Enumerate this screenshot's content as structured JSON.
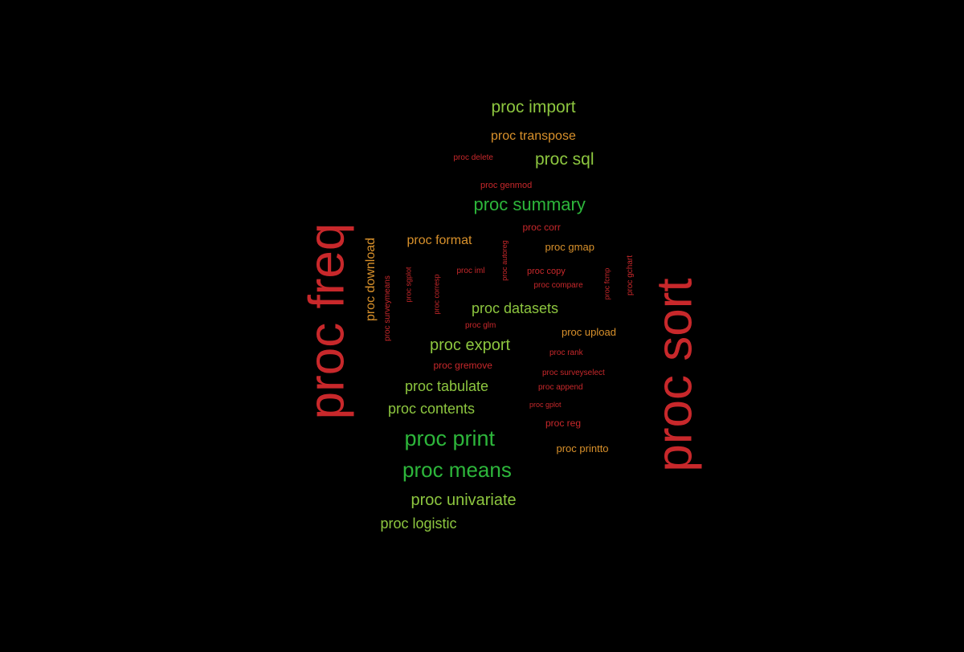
{
  "background": "#000000",
  "colors": {
    "red": "#C8282B",
    "green": "#2DB63B",
    "lime": "#8DC63F",
    "orange": "#D9912B"
  },
  "words": [
    {
      "text": "proc freq",
      "color": "red",
      "vertical": true
    },
    {
      "text": "proc sort",
      "color": "red",
      "vertical": true
    },
    {
      "text": "proc import",
      "color": "lime"
    },
    {
      "text": "proc transpose",
      "color": "orange"
    },
    {
      "text": "proc delete",
      "color": "red"
    },
    {
      "text": "proc sql",
      "color": "lime"
    },
    {
      "text": "proc genmod",
      "color": "red"
    },
    {
      "text": "proc summary",
      "color": "green"
    },
    {
      "text": "proc corr",
      "color": "red"
    },
    {
      "text": "proc format",
      "color": "orange"
    },
    {
      "text": "proc gmap",
      "color": "orange"
    },
    {
      "text": "proc download",
      "color": "orange",
      "vertical": true
    },
    {
      "text": "proc surveymeans",
      "color": "red",
      "vertical": true
    },
    {
      "text": "proc sgplot",
      "color": "red",
      "vertical": true
    },
    {
      "text": "proc corresp",
      "color": "red",
      "vertical": true
    },
    {
      "text": "proc iml",
      "color": "red"
    },
    {
      "text": "proc autoreg",
      "color": "red",
      "vertical": true
    },
    {
      "text": "proc copy",
      "color": "red"
    },
    {
      "text": "proc compare",
      "color": "red"
    },
    {
      "text": "proc fcmp",
      "color": "red",
      "vertical": true
    },
    {
      "text": "proc gchart",
      "color": "red",
      "vertical": true
    },
    {
      "text": "proc datasets",
      "color": "lime"
    },
    {
      "text": "proc glm",
      "color": "red"
    },
    {
      "text": "proc upload",
      "color": "orange"
    },
    {
      "text": "proc export",
      "color": "lime"
    },
    {
      "text": "proc rank",
      "color": "red"
    },
    {
      "text": "proc gremove",
      "color": "red"
    },
    {
      "text": "proc surveyselect",
      "color": "red"
    },
    {
      "text": "proc tabulate",
      "color": "lime"
    },
    {
      "text": "proc append",
      "color": "red"
    },
    {
      "text": "proc gplot",
      "color": "red"
    },
    {
      "text": "proc contents",
      "color": "lime"
    },
    {
      "text": "proc reg",
      "color": "red"
    },
    {
      "text": "proc print",
      "color": "green"
    },
    {
      "text": "proc printto",
      "color": "orange"
    },
    {
      "text": "proc means",
      "color": "green"
    },
    {
      "text": "proc univariate",
      "color": "lime"
    },
    {
      "text": "proc logistic",
      "color": "lime"
    }
  ]
}
